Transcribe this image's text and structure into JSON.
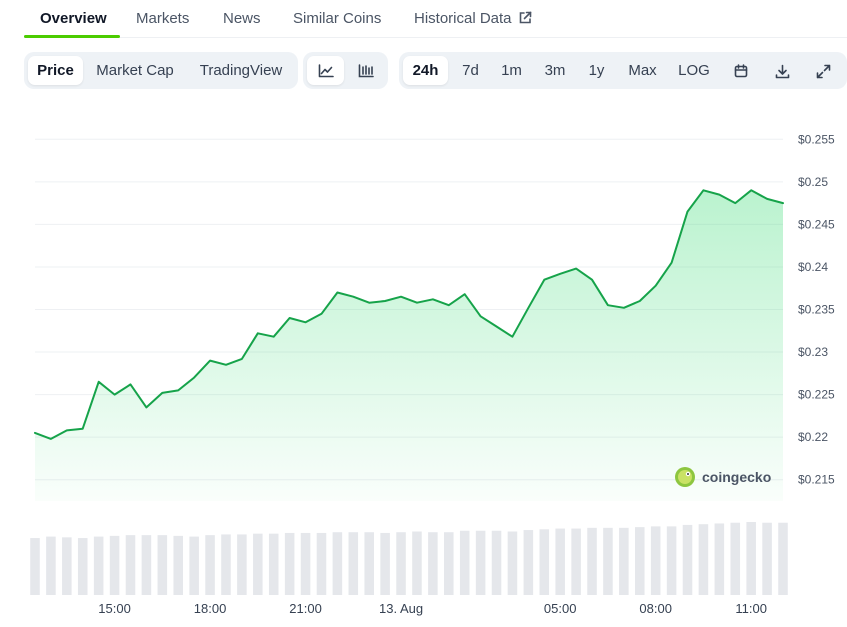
{
  "tabs": [
    {
      "label": "Overview",
      "active": true
    },
    {
      "label": "Markets"
    },
    {
      "label": "News"
    },
    {
      "label": "Similar Coins"
    },
    {
      "label": "Historical Data",
      "icon": "external-link-icon"
    }
  ],
  "toolbar": {
    "chart_modes": [
      "Price",
      "Market Cap",
      "TradingView"
    ],
    "active_mode": "Price",
    "chart_types": [
      {
        "icon": "line-chart-icon",
        "active": true
      },
      {
        "icon": "candlestick-chart-icon",
        "active": false
      }
    ],
    "ranges": [
      "24h",
      "7d",
      "1m",
      "3m",
      "1y",
      "Max",
      "LOG"
    ],
    "active_range": "24h",
    "actions": [
      {
        "icon": "calendar-icon"
      },
      {
        "icon": "download-icon"
      },
      {
        "icon": "fullscreen-icon"
      }
    ]
  },
  "watermark": {
    "text": "coingecko",
    "icon": "coingecko-logo-icon"
  },
  "colors": {
    "line": "#16a34a",
    "fill": "#4ade80",
    "volume": "#e5e7eb",
    "accent": "#4bcc00"
  },
  "chart_data": {
    "type": "area",
    "x": [
      "12:30",
      "13:00",
      "13:30",
      "14:00",
      "14:30",
      "15:00",
      "15:30",
      "16:00",
      "16:30",
      "17:00",
      "17:30",
      "18:00",
      "18:30",
      "19:00",
      "19:30",
      "20:00",
      "20:30",
      "21:00",
      "21:30",
      "22:00",
      "22:30",
      "23:00",
      "23:30",
      "00:00",
      "00:30",
      "01:00",
      "01:30",
      "02:00",
      "02:30",
      "03:00",
      "03:30",
      "04:00",
      "04:30",
      "05:00",
      "05:30",
      "06:00",
      "06:30",
      "07:00",
      "07:30",
      "08:00",
      "08:30",
      "09:00",
      "09:30",
      "10:00",
      "10:30",
      "11:00",
      "11:30",
      "12:00"
    ],
    "values": [
      0.2205,
      0.2198,
      0.2208,
      0.221,
      0.2265,
      0.225,
      0.2262,
      0.2235,
      0.2252,
      0.2255,
      0.227,
      0.229,
      0.2285,
      0.2292,
      0.2322,
      0.2318,
      0.234,
      0.2335,
      0.2345,
      0.237,
      0.2365,
      0.2358,
      0.236,
      0.2365,
      0.2358,
      0.2362,
      0.2355,
      0.2368,
      0.2342,
      0.233,
      0.2318,
      0.2352,
      0.2385,
      0.2392,
      0.2398,
      0.2385,
      0.2355,
      0.2352,
      0.236,
      0.2378,
      0.2405,
      0.2465,
      0.249,
      0.2485,
      0.2475,
      0.249,
      0.248,
      0.2475
    ],
    "volume": [
      0.78,
      0.8,
      0.79,
      0.78,
      0.8,
      0.81,
      0.82,
      0.82,
      0.82,
      0.81,
      0.8,
      0.82,
      0.83,
      0.83,
      0.84,
      0.84,
      0.85,
      0.85,
      0.85,
      0.86,
      0.86,
      0.86,
      0.85,
      0.86,
      0.87,
      0.86,
      0.86,
      0.88,
      0.88,
      0.88,
      0.87,
      0.89,
      0.9,
      0.91,
      0.91,
      0.92,
      0.92,
      0.92,
      0.93,
      0.94,
      0.94,
      0.96,
      0.97,
      0.98,
      0.99,
      1.0,
      0.99,
      0.99
    ],
    "yticks": [
      0.255,
      0.25,
      0.245,
      0.24,
      0.235,
      0.23,
      0.225,
      0.22,
      0.215
    ],
    "ytick_labels": [
      "$0.255",
      "$0.25",
      "$0.245",
      "$0.24",
      "$0.235",
      "$0.23",
      "$0.225",
      "$0.22",
      "$0.215"
    ],
    "ylim": [
      0.2125,
      0.2575
    ],
    "xtick_labels": [
      "15:00",
      "18:00",
      "21:00",
      "13. Aug",
      "05:00",
      "08:00",
      "11:00"
    ],
    "xtick_positions": [
      "15:00",
      "18:00",
      "21:00",
      "00:00",
      "05:00",
      "08:00",
      "11:00"
    ],
    "grid": true,
    "title": "",
    "xlabel": "",
    "ylabel": ""
  }
}
